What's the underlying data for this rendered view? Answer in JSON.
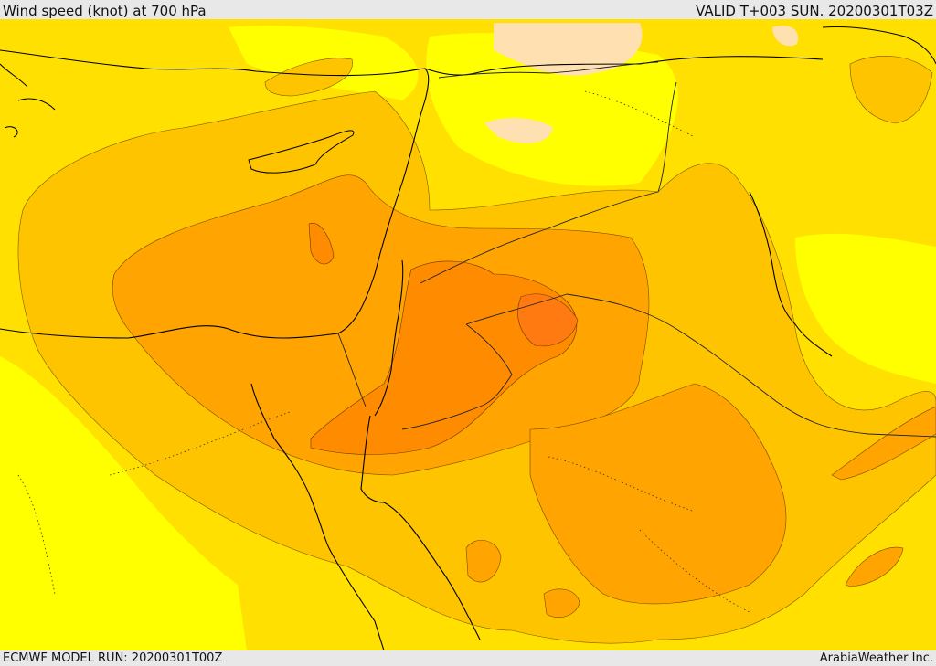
{
  "header": {
    "title": "Wind speed (knot) at 700 hPa",
    "valid": "VALID T+003 SUN. 20200301T03Z"
  },
  "footer": {
    "model_run": "ECMWF MODEL RUN: 20200301T00Z",
    "credit": "ArabiaWeather Inc."
  },
  "map": {
    "field": "wind speed at 700 hPa",
    "colors": {
      "very_low": "#ffffff",
      "low_peach": "#ffe0b0",
      "yellow_light": "#ffff00",
      "yellow": "#ffe000",
      "gold": "#ffc400",
      "orange_light": "#ffa400",
      "orange": "#ff8c00",
      "orange_dark": "#ff7a10",
      "coastline": "#000000",
      "border": "#222222"
    }
  }
}
